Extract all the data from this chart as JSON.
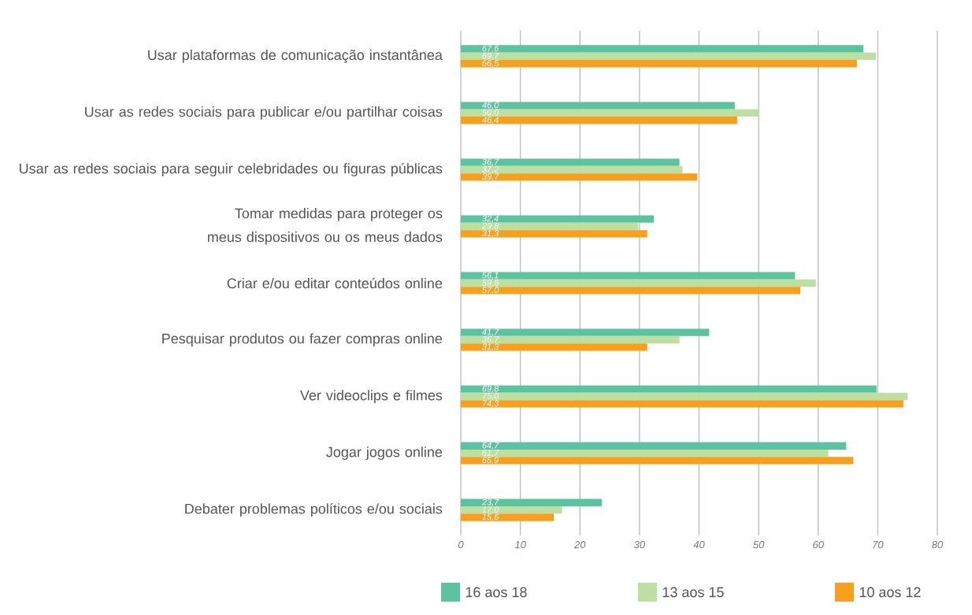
{
  "chart_data": {
    "type": "bar",
    "orientation": "horizontal",
    "categories": [
      "Usar plataformas de comunicação instantânea",
      "Usar as redes sociais para publicar e/ou partilhar coisas",
      "Usar as redes sociais para seguir celebridades ou figuras públicas",
      "Tomar medidas para proteger os meus dispositivos ou os meus dados",
      "Criar e/ou editar conteúdos online",
      "Pesquisar produtos ou fazer compras online",
      "Ver videoclips e filmes",
      "Jogar jogos online",
      "Debater problemas políticos e/ou sociais"
    ],
    "series": [
      {
        "name": "16 aos 18",
        "color": "#5bc3a0",
        "values": [
          67.6,
          46.0,
          36.7,
          32.4,
          56.1,
          41.7,
          69.8,
          64.7,
          23.7
        ],
        "value_labels": [
          "67,6",
          "46,0",
          "36,7",
          "32,4",
          "56,1",
          "41,7",
          "69,8",
          "64,7",
          "23,7"
        ]
      },
      {
        "name": "13 aos 15",
        "color": "#bddfa1",
        "values": [
          69.7,
          50.0,
          37.2,
          29.8,
          59.6,
          36.7,
          75.0,
          61.7,
          17.0
        ],
        "value_labels": [
          "69,7",
          "50,0",
          "37,2",
          "29,8",
          "59,6",
          "36,7",
          "75,0",
          "61,7",
          "17,0"
        ]
      },
      {
        "name": "10 aos 12",
        "color": "#f7a01e",
        "values": [
          66.5,
          46.4,
          39.7,
          31.3,
          57.0,
          31.3,
          74.3,
          65.9,
          15.6
        ],
        "value_labels": [
          "66,5",
          "46,4",
          "39,7",
          "31,3",
          "57,0",
          "31,3",
          "74,3",
          "65,9",
          "15,6"
        ]
      }
    ],
    "xlim": [
      0,
      80
    ],
    "xticks": [
      0,
      10,
      20,
      30,
      40,
      50,
      60,
      70,
      80
    ],
    "grid": "x",
    "legend": "bottom"
  }
}
